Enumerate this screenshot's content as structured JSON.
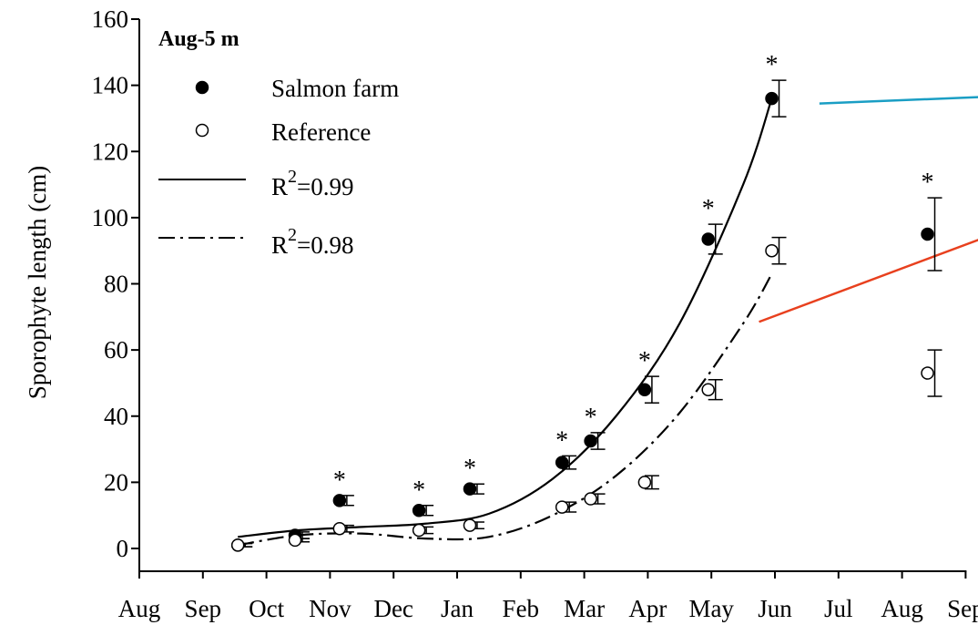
{
  "chart_data": {
    "type": "scatter",
    "panel_label": "Aug-5 m",
    "ylabel": "Sporophyte length (cm)",
    "xlabel": "",
    "ylim": [
      0,
      160
    ],
    "y_ticks": [
      0,
      20,
      40,
      60,
      80,
      100,
      120,
      140,
      160
    ],
    "x_categories": [
      "Aug",
      "Sep",
      "Oct",
      "Nov",
      "Dec",
      "Jan",
      "Feb",
      "Mar",
      "Apr",
      "May",
      "Jun",
      "Jul",
      "Aug",
      "Sep"
    ],
    "legend_position": "top-left",
    "series": [
      {
        "name": "Salmon farm",
        "marker": "filled-circle",
        "x": [
          1.55,
          2.45,
          3.15,
          4.4,
          5.2,
          6.65,
          7.1,
          7.95,
          8.95,
          9.95,
          12.4
        ],
        "y": [
          1,
          4,
          14.5,
          11.5,
          18,
          26,
          32.5,
          48,
          93.5,
          136,
          95
        ],
        "err": [
          0.5,
          1,
          1.5,
          1.5,
          1.5,
          2,
          2.5,
          4,
          4.5,
          5.5,
          11
        ],
        "significant": [
          false,
          false,
          true,
          true,
          true,
          true,
          true,
          true,
          true,
          true,
          true
        ]
      },
      {
        "name": "Reference",
        "marker": "open-circle",
        "x": [
          1.55,
          2.45,
          3.15,
          4.4,
          5.2,
          6.65,
          7.1,
          7.95,
          8.95,
          9.95,
          12.4
        ],
        "y": [
          1,
          2.5,
          6,
          5.5,
          7,
          12.5,
          15,
          20,
          48,
          90,
          53
        ],
        "err": [
          0.5,
          0.5,
          1,
          1,
          1,
          1.5,
          1.5,
          2,
          3,
          4,
          7
        ]
      }
    ],
    "fits": [
      {
        "label": "R2=0.99",
        "style": "solid",
        "x": [
          1.55,
          2.5,
          3.5,
          4.5,
          5.5,
          6.5,
          7.5,
          8.5,
          9.5,
          9.95
        ],
        "y": [
          3.5,
          5.5,
          6.5,
          7.5,
          10.5,
          21,
          40,
          68,
          110,
          136
        ]
      },
      {
        "label": "R2=0.98",
        "style": "dash-dot",
        "x": [
          1.55,
          2.5,
          3.5,
          4.5,
          5.5,
          6.5,
          7.5,
          8.5,
          9.5,
          9.95
        ],
        "y": [
          1,
          4,
          4.5,
          3,
          3.5,
          10,
          22,
          41,
          68,
          83
        ]
      }
    ],
    "legend": {
      "salmon": "Salmon farm",
      "reference": "Reference",
      "fit1_prefix": "R",
      "fit1_sup": "2",
      "fit1_suffix": "=0.99",
      "fit2_prefix": "R",
      "fit2_sup": "2",
      "fit2_suffix": "=0.98"
    },
    "sig_symbol": "*",
    "extra_lines": [
      {
        "color": "#1a9ec4",
        "x": [
          10.7,
          13.3
        ],
        "y": [
          134.5,
          136.5
        ]
      },
      {
        "color": "#e8401e",
        "x": [
          9.75,
          13.3
        ],
        "y": [
          68.5,
          94
        ]
      }
    ]
  }
}
